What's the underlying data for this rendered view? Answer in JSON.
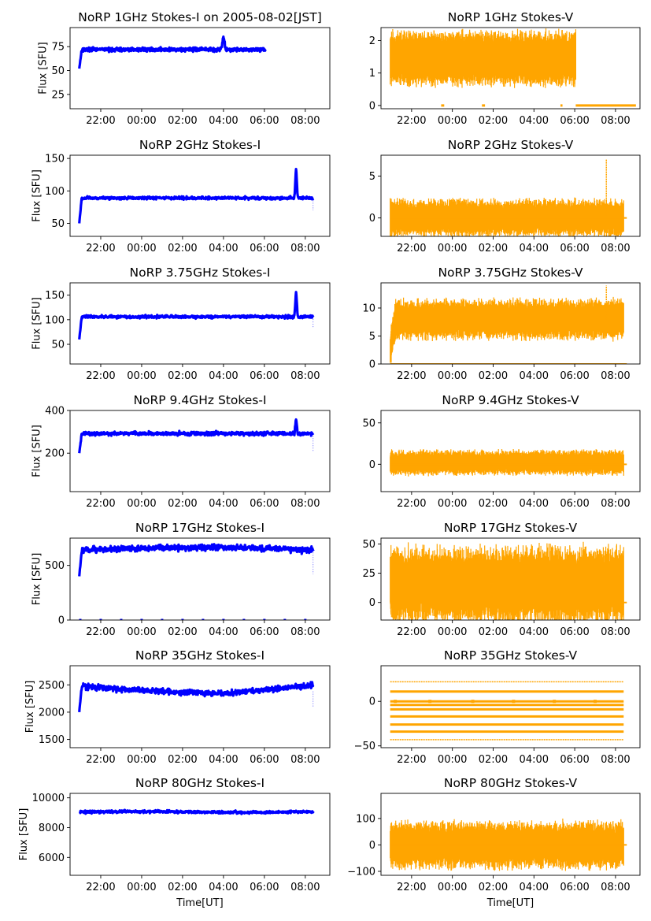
{
  "colors": {
    "stokes_i": "#0000ff",
    "stokes_v": "#ffa500",
    "axes": "#000000",
    "background": "#ffffff"
  },
  "x_ticks": [
    "22:00",
    "00:00",
    "02:00",
    "04:00",
    "06:00",
    "08:00"
  ],
  "x_tick_hours": [
    22,
    24,
    26,
    28,
    30,
    32
  ],
  "xlim_hours": [
    20.5,
    33.2
  ],
  "xlabel": "Time[UT]",
  "chart_data": [
    {
      "id": "i1",
      "type": "scatter",
      "title": "NoRP 1GHz Stokes-I on 2005-08-02[JST]",
      "ylabel": "Flux [SFU]",
      "xlabel": "",
      "ylim": [
        10,
        95
      ],
      "yticks": [
        25,
        50,
        75
      ],
      "ytick_labels": [
        "25",
        "50",
        "75"
      ],
      "time_range_hours": [
        20.95,
        30.05
      ],
      "baseline": 72,
      "start_value": 52,
      "noise": 1.4,
      "spikes": [
        {
          "time": 28.0,
          "value": 85,
          "width": 0.07
        }
      ],
      "outliers": []
    },
    {
      "id": "v1",
      "type": "scatter",
      "title": "NoRP 1GHz Stokes-V",
      "ylabel": "",
      "xlabel": "",
      "ylim": [
        -0.1,
        2.4
      ],
      "yticks": [
        0,
        1,
        2
      ],
      "ytick_labels": [
        "0",
        "1",
        "2"
      ],
      "time_range_hours": [
        20.95,
        30.05
      ],
      "baseline": 1.45,
      "noise": 0.28,
      "zero_segments": [
        [
          23.45,
          23.6
        ],
        [
          25.45,
          25.6
        ],
        [
          29.3,
          29.4
        ],
        [
          30.05,
          33.2
        ]
      ]
    },
    {
      "id": "i2",
      "type": "scatter",
      "title": "NoRP 2GHz Stokes-I",
      "ylabel": "Flux [SFU]",
      "xlabel": "",
      "ylim": [
        30,
        155
      ],
      "yticks": [
        50,
        100,
        150
      ],
      "ytick_labels": [
        "50",
        "100",
        "150"
      ],
      "time_range_hours": [
        20.95,
        32.4
      ],
      "baseline": 89,
      "start_value": 50,
      "noise": 1.5,
      "spikes": [
        {
          "time": 31.55,
          "value": 133,
          "width": 0.05
        }
      ],
      "outliers": [
        {
          "time": 32.38,
          "value": 70
        }
      ]
    },
    {
      "id": "v2",
      "type": "scatter",
      "title": "NoRP 2GHz Stokes-V",
      "ylabel": "",
      "xlabel": "",
      "ylim": [
        -2.2,
        7.5
      ],
      "yticks": [
        0,
        5
      ],
      "ytick_labels": [
        "0",
        "5"
      ],
      "time_range_hours": [
        20.95,
        32.4
      ],
      "baseline": 0,
      "noise": 0.75,
      "spikes": [
        {
          "time": 31.55,
          "value": 7.0,
          "width": 0.06
        }
      ]
    },
    {
      "id": "i3",
      "type": "scatter",
      "title": "NoRP 3.75GHz Stokes-I",
      "ylabel": "Flux [SFU]",
      "xlabel": "",
      "ylim": [
        10,
        175
      ],
      "yticks": [
        50,
        100,
        150
      ],
      "ytick_labels": [
        "50",
        "100",
        "150"
      ],
      "time_range_hours": [
        20.95,
        32.4
      ],
      "baseline": 106,
      "start_value": 60,
      "noise": 2.0,
      "spikes": [
        {
          "time": 31.55,
          "value": 155,
          "width": 0.05
        }
      ],
      "outliers": [
        {
          "time": 32.38,
          "value": 85
        }
      ]
    },
    {
      "id": "v3",
      "type": "scatter",
      "title": "NoRP 3.75GHz Stokes-V",
      "ylabel": "",
      "xlabel": "",
      "ylim": [
        0,
        14.5
      ],
      "yticks": [
        0,
        5,
        10
      ],
      "ytick_labels": [
        "0",
        "5",
        "10"
      ],
      "time_range_hours": [
        20.95,
        32.4
      ],
      "baseline": 8.0,
      "noise": 1.2,
      "start_value": 2.5,
      "spikes": [
        {
          "time": 31.55,
          "value": 14,
          "width": 0.06
        }
      ]
    },
    {
      "id": "i4",
      "type": "scatter",
      "title": "NoRP 9.4GHz Stokes-I",
      "ylabel": "Flux [SFU]",
      "xlabel": "",
      "ylim": [
        20,
        400
      ],
      "yticks": [
        200,
        400
      ],
      "ytick_labels": [
        "200",
        "400"
      ],
      "time_range_hours": [
        20.95,
        32.4
      ],
      "baseline": 292,
      "start_value": 200,
      "noise": 6,
      "spikes": [
        {
          "time": 31.55,
          "value": 360,
          "width": 0.05
        }
      ],
      "outliers": [
        {
          "time": 32.38,
          "value": 210
        }
      ]
    },
    {
      "id": "v4",
      "type": "scatter",
      "title": "NoRP 9.4GHz Stokes-V",
      "ylabel": "",
      "xlabel": "",
      "ylim": [
        -33,
        65
      ],
      "yticks": [
        0,
        50
      ],
      "ytick_labels": [
        "0",
        "50"
      ],
      "time_range_hours": [
        20.95,
        32.4
      ],
      "baseline": 2,
      "noise": 5
    },
    {
      "id": "i5",
      "type": "scatter",
      "title": "NoRP 17GHz Stokes-I",
      "ylabel": "Flux [SFU]",
      "xlabel": "",
      "ylim": [
        0,
        750
      ],
      "yticks": [
        0,
        500
      ],
      "ytick_labels": [
        "0",
        "500"
      ],
      "time_range_hours": [
        20.95,
        32.4
      ],
      "baseline": 640,
      "start_value": 400,
      "noise": 18,
      "spikes": [],
      "outliers": [
        {
          "time": 32.38,
          "value": 420
        }
      ]
    },
    {
      "id": "v5",
      "type": "scatter",
      "title": "NoRP 17GHz Stokes-V",
      "ylabel": "",
      "xlabel": "",
      "ylim": [
        -15,
        55
      ],
      "yticks": [
        0,
        25,
        50
      ],
      "ytick_labels": [
        "0",
        "25",
        "50"
      ],
      "time_range_hours": [
        20.95,
        32.4
      ],
      "baseline": 15,
      "noise": 11
    },
    {
      "id": "i6",
      "type": "scatter",
      "title": "NoRP 35GHz Stokes-I",
      "ylabel": "Flux [SFU]",
      "xlabel": "",
      "ylim": [
        1350,
        2850
      ],
      "yticks": [
        1500,
        2000,
        2500
      ],
      "ytick_labels": [
        "1500",
        "2000",
        "2500"
      ],
      "time_range_hours": [
        20.95,
        32.4
      ],
      "baseline": 2380,
      "start_value": 2000,
      "noise": 35,
      "spikes": [],
      "outliers": [
        {
          "time": 32.38,
          "value": 2100
        }
      ]
    },
    {
      "id": "v6",
      "type": "scatter",
      "title": "NoRP 35GHz Stokes-V",
      "ylabel": "",
      "xlabel": "",
      "ylim": [
        -52,
        40
      ],
      "yticks": [
        -50,
        0
      ],
      "ytick_labels": [
        "−50",
        "0"
      ],
      "time_range_hours": [
        20.95,
        32.4
      ],
      "levels": [
        22,
        11,
        0,
        -4,
        -9,
        -17,
        -26,
        -34,
        -43
      ]
    },
    {
      "id": "i7",
      "type": "scatter",
      "title": "NoRP 80GHz Stokes-I",
      "ylabel": "Flux [SFU]",
      "xlabel": "Time[UT]",
      "ylim": [
        4800,
        10300
      ],
      "yticks": [
        6000,
        8000,
        10000
      ],
      "ytick_labels": [
        "6000",
        "8000",
        "10000"
      ],
      "time_range_hours": [
        20.95,
        32.4
      ],
      "baseline": 9050,
      "noise": 60,
      "spikes": [],
      "outliers": []
    },
    {
      "id": "v7",
      "type": "scatter",
      "title": "NoRP 80GHz Stokes-V",
      "ylabel": "",
      "xlabel": "Time[UT]",
      "ylim": [
        -115,
        195
      ],
      "yticks": [
        -100,
        0,
        100
      ],
      "ytick_labels": [
        "−100",
        "0",
        "100"
      ],
      "time_range_hours": [
        20.95,
        32.4
      ],
      "baseline": 0,
      "noise": 30
    }
  ]
}
